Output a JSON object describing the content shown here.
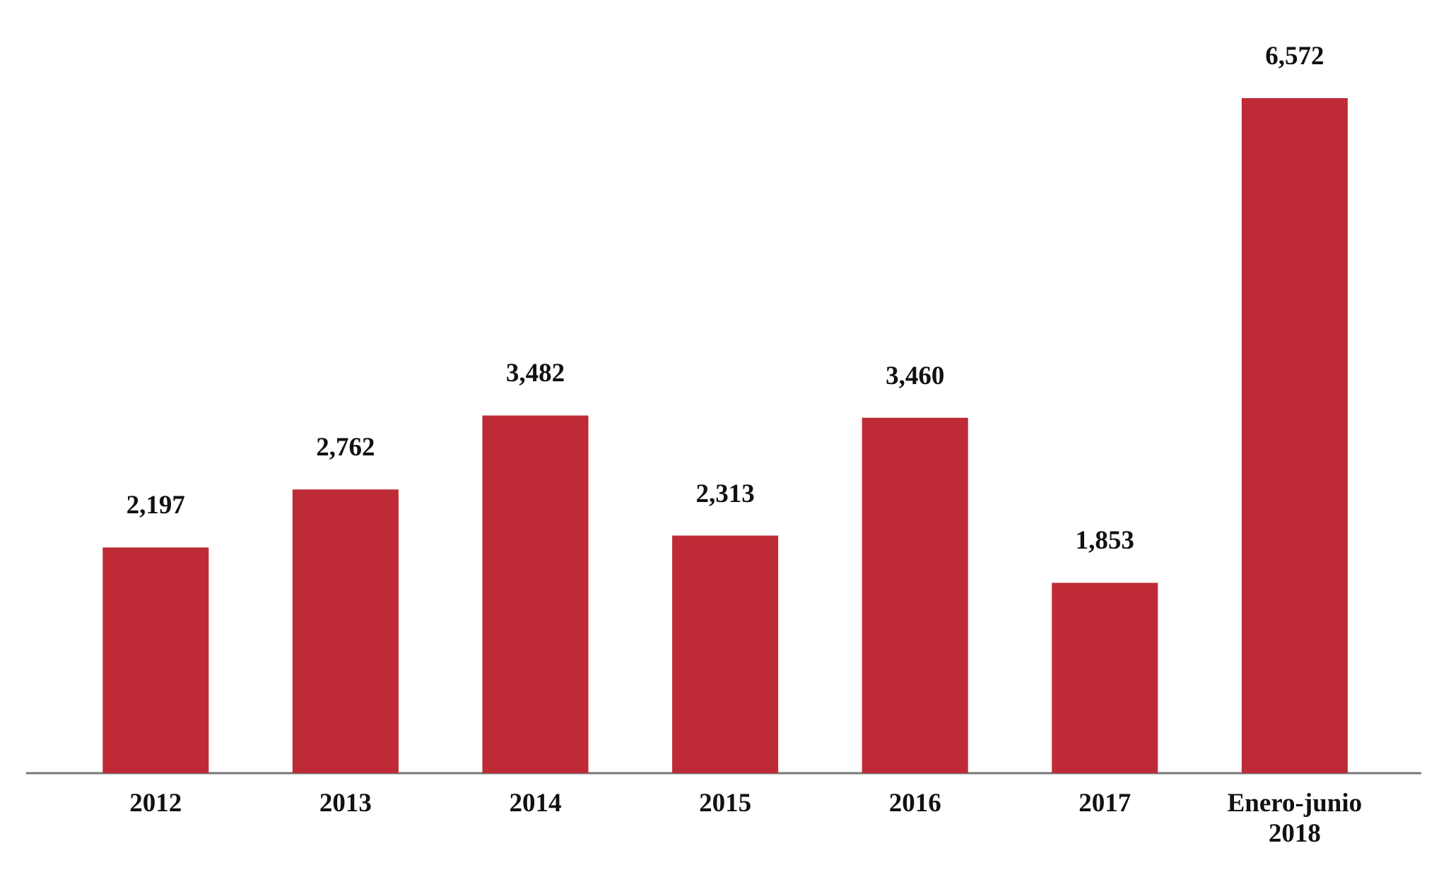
{
  "chart_data": {
    "type": "bar",
    "categories": [
      "2012",
      "2013",
      "2014",
      "2015",
      "2016",
      "2017",
      "Enero-junio 2018"
    ],
    "values": [
      2197,
      2762,
      3482,
      2313,
      3460,
      1853,
      6572
    ],
    "value_labels": [
      "2,197",
      "2,762",
      "3,482",
      "2,313",
      "3,460",
      "1,853",
      "6,572"
    ],
    "color": "#be2a35"
  }
}
